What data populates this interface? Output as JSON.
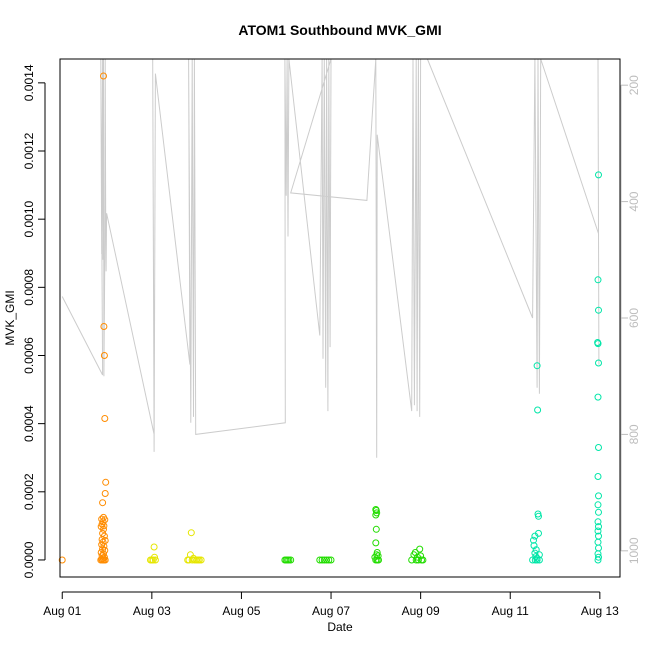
{
  "chart_data": {
    "type": "scatter",
    "title": "ATOM1 Southbound MVK_GMI",
    "xlabel": "Date",
    "ylabel": "MVK_GMI",
    "x_ticks": [
      "Aug 01",
      "Aug 03",
      "Aug 05",
      "Aug 07",
      "Aug 09",
      "Aug 11",
      "Aug 13"
    ],
    "y_ticks": [
      "0.0000",
      "0.0002",
      "0.0004",
      "0.0006",
      "0.0008",
      "0.0010",
      "0.0012",
      "0.0014"
    ],
    "y2_ticks": [
      "200",
      "400",
      "600",
      "800",
      "1000"
    ],
    "xlim": [
      -0.05,
      12.45
    ],
    "ylim": [
      -5e-05,
      0.00147
    ],
    "y2lim": [
      1045,
      155
    ],
    "y2_reversed": true,
    "grid": false,
    "colors": {
      "orange": "#ff8c00",
      "yellow": "#e6e600",
      "green": "#22dd00",
      "teal": "#00e6a8",
      "line": "#cccccc"
    },
    "series": [
      {
        "color": "orange",
        "points": [
          [
            0.0,
            0.0
          ],
          [
            0.92,
            0.00142
          ],
          [
            0.93,
            0.000685
          ],
          [
            0.94,
            0.0006
          ],
          [
            0.95,
            0.000415
          ],
          [
            0.97,
            0.000228
          ],
          [
            0.96,
            0.000195
          ],
          [
            0.9,
            0.000168
          ],
          [
            0.92,
            0.000125
          ],
          [
            0.88,
            0.00012
          ],
          [
            0.95,
            0.000118
          ],
          [
            0.91,
            0.000112
          ],
          [
            0.89,
            0.000105
          ],
          [
            0.93,
            0.0001
          ],
          [
            0.87,
            9.8e-05
          ],
          [
            0.92,
            9e-05
          ],
          [
            0.9,
            7.8e-05
          ],
          [
            0.94,
            7e-05
          ],
          [
            0.89,
            6e-05
          ],
          [
            0.96,
            5.7e-05
          ],
          [
            0.91,
            5.2e-05
          ],
          [
            0.88,
            4.5e-05
          ],
          [
            0.93,
            4e-05
          ],
          [
            0.9,
            3.2e-05
          ],
          [
            0.95,
            2.8e-05
          ],
          [
            0.87,
            2.2e-05
          ],
          [
            0.92,
            1.8e-05
          ],
          [
            0.89,
            1.2e-05
          ],
          [
            0.94,
            8e-06
          ],
          [
            0.91,
            5e-06
          ],
          [
            0.88,
            2e-06
          ],
          [
            0.93,
            0.0
          ],
          [
            0.9,
            0.0
          ],
          [
            0.96,
            0.0
          ],
          [
            0.86,
            0.0
          ]
        ]
      },
      {
        "color": "yellow",
        "points": [
          [
            1.97,
            0.0
          ],
          [
            2.0,
            0.0
          ],
          [
            2.03,
            0.0
          ],
          [
            2.05,
            3.8e-05
          ],
          [
            2.06,
            8e-06
          ],
          [
            2.08,
            0.0
          ],
          [
            2.8,
            0.0
          ],
          [
            2.83,
            0.0
          ],
          [
            2.86,
            1.5e-05
          ],
          [
            2.88,
            8e-05
          ],
          [
            2.9,
            0.0
          ],
          [
            2.93,
            5e-06
          ],
          [
            2.96,
            0.0
          ],
          [
            3.0,
            0.0
          ],
          [
            3.03,
            0.0
          ],
          [
            3.06,
            0.0
          ],
          [
            3.1,
            0.0
          ]
        ]
      },
      {
        "color": "green",
        "points": [
          [
            4.97,
            0.0
          ],
          [
            5.0,
            0.0
          ],
          [
            5.03,
            0.0
          ],
          [
            5.06,
            0.0
          ],
          [
            5.1,
            0.0
          ],
          [
            5.75,
            0.0
          ],
          [
            5.8,
            0.0
          ],
          [
            5.85,
            0.0
          ],
          [
            5.9,
            0.0
          ],
          [
            5.95,
            0.0
          ],
          [
            6.0,
            0.0
          ],
          [
            7.0,
            0.000148
          ],
          [
            7.01,
            0.000145
          ],
          [
            7.02,
            0.000138
          ],
          [
            7.0,
            0.000132
          ],
          [
            7.01,
            9e-05
          ],
          [
            7.0,
            5e-05
          ],
          [
            7.03,
            2.2e-05
          ],
          [
            7.02,
            1.5e-05
          ],
          [
            7.05,
            1.2e-05
          ],
          [
            6.98,
            8e-06
          ],
          [
            7.0,
            0.0
          ],
          [
            7.03,
            0.0
          ],
          [
            7.06,
            0.0
          ],
          [
            7.8,
            0.0
          ],
          [
            7.85,
            1.5e-05
          ],
          [
            7.88,
            2.2e-05
          ],
          [
            7.9,
            0.0
          ],
          [
            7.93,
            8e-06
          ],
          [
            7.95,
            0.0
          ],
          [
            7.98,
            3.2e-05
          ],
          [
            8.0,
            1.2e-05
          ],
          [
            8.02,
            0.0
          ],
          [
            8.05,
            0.0
          ]
        ]
      },
      {
        "color": "teal",
        "points": [
          [
            10.5,
            0.0
          ],
          [
            10.52,
            5.8e-05
          ],
          [
            10.53,
            4.2e-05
          ],
          [
            10.55,
            7e-05
          ],
          [
            10.55,
            2e-05
          ],
          [
            10.56,
            0.0
          ],
          [
            10.57,
            1e-05
          ],
          [
            10.58,
            3e-05
          ],
          [
            10.6,
            5e-06
          ],
          [
            10.6,
            0.0
          ],
          [
            10.6,
            0.00057
          ],
          [
            10.61,
            0.00044
          ],
          [
            10.62,
            0.000135
          ],
          [
            10.63,
            0.000128
          ],
          [
            10.63,
            7.8e-05
          ],
          [
            10.65,
            0.0
          ],
          [
            10.65,
            1.5e-05
          ],
          [
            11.97,
            0.00113
          ],
          [
            11.96,
            0.000822
          ],
          [
            11.97,
            0.000733
          ],
          [
            11.95,
            0.000638
          ],
          [
            11.96,
            0.000635
          ],
          [
            11.97,
            0.000578
          ],
          [
            11.96,
            0.000478
          ],
          [
            11.97,
            0.00033
          ],
          [
            11.96,
            0.000245
          ],
          [
            11.97,
            0.000188
          ],
          [
            11.96,
            0.000162
          ],
          [
            11.97,
            0.00014
          ],
          [
            11.96,
            0.000112
          ],
          [
            11.97,
            9.8e-05
          ],
          [
            11.96,
            8.5e-05
          ],
          [
            11.97,
            7e-05
          ],
          [
            11.96,
            5.2e-05
          ],
          [
            11.97,
            3.5e-05
          ],
          [
            11.96,
            1.8e-05
          ],
          [
            11.97,
            8e-06
          ],
          [
            11.96,
            0.0
          ]
        ]
      }
    ],
    "line_series": {
      "axis": "right",
      "color": "line",
      "points": [
        [
          0.0,
          563
        ],
        [
          0.9,
          698
        ],
        [
          0.86,
          155
        ],
        [
          0.88,
          490
        ],
        [
          0.9,
          155
        ],
        [
          0.91,
          500
        ],
        [
          0.92,
          155
        ],
        [
          0.93,
          700
        ],
        [
          0.95,
          495
        ],
        [
          0.96,
          155
        ],
        [
          0.97,
          430
        ],
        [
          0.98,
          520
        ],
        [
          0.99,
          420
        ],
        [
          2.05,
          800
        ],
        [
          2.02,
          155
        ],
        [
          2.05,
          830
        ],
        [
          2.08,
          180
        ],
        [
          2.85,
          680
        ],
        [
          2.82,
          155
        ],
        [
          2.87,
          780
        ],
        [
          2.9,
          155
        ],
        [
          2.93,
          770
        ],
        [
          2.95,
          155
        ],
        [
          2.98,
          800
        ],
        [
          4.98,
          780
        ],
        [
          4.97,
          155
        ],
        [
          5.0,
          390
        ],
        [
          5.02,
          155
        ],
        [
          5.04,
          460
        ],
        [
          5.06,
          155
        ],
        [
          5.75,
          630
        ],
        [
          5.8,
          155
        ],
        [
          5.82,
          670
        ],
        [
          5.85,
          155
        ],
        [
          5.88,
          720
        ],
        [
          5.9,
          155
        ],
        [
          5.93,
          760
        ],
        [
          5.95,
          155
        ],
        [
          5.98,
          650
        ],
        [
          6.0,
          155
        ],
        [
          5.1,
          385
        ],
        [
          6.8,
          398
        ],
        [
          7.0,
          155
        ],
        [
          7.02,
          840
        ],
        [
          7.03,
          285
        ],
        [
          7.8,
          760
        ],
        [
          7.83,
          155
        ],
        [
          7.86,
          750
        ],
        [
          7.9,
          155
        ],
        [
          7.92,
          760
        ],
        [
          7.95,
          155
        ],
        [
          7.98,
          770
        ],
        [
          8.0,
          155
        ],
        [
          8.05,
          155
        ],
        [
          8.15,
          155
        ],
        [
          10.5,
          600
        ],
        [
          10.55,
          155
        ],
        [
          10.6,
          720
        ],
        [
          10.62,
          155
        ],
        [
          10.65,
          730
        ],
        [
          10.68,
          155
        ],
        [
          11.97,
          455
        ],
        [
          11.96,
          155
        ],
        [
          11.98,
          680
        ]
      ]
    }
  }
}
